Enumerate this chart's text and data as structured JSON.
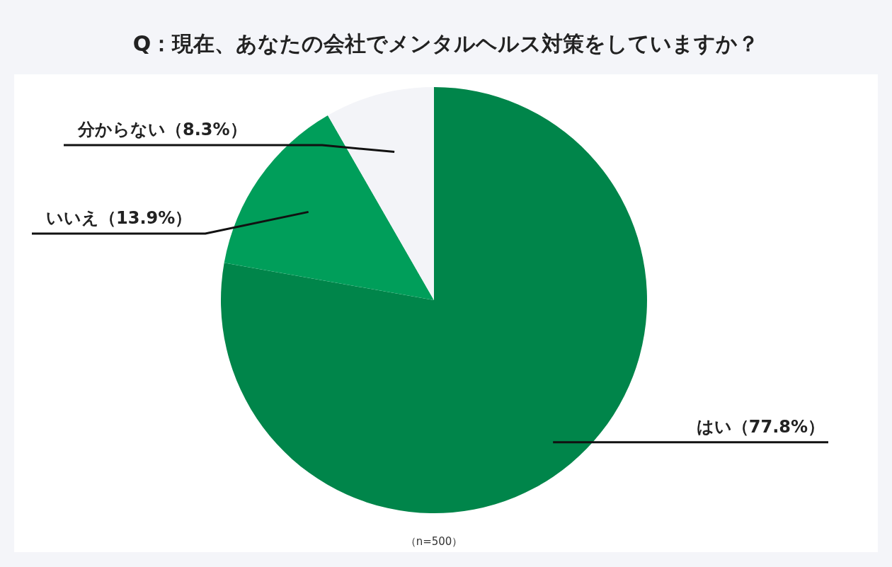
{
  "chart_data": {
    "type": "pie",
    "title": "Q：現在、あなたの会社でメンタルヘルス対策をしていますか？",
    "categories": [
      "はい",
      "いいえ",
      "分からない"
    ],
    "values": [
      77.8,
      13.9,
      8.3
    ],
    "value_labels": [
      "（77.8%）",
      "（13.9%）",
      "（8.3%）"
    ],
    "colors": [
      "#00854a",
      "#009e5a",
      "#f3f4f8"
    ],
    "annotations": [
      "（n=500）"
    ]
  }
}
